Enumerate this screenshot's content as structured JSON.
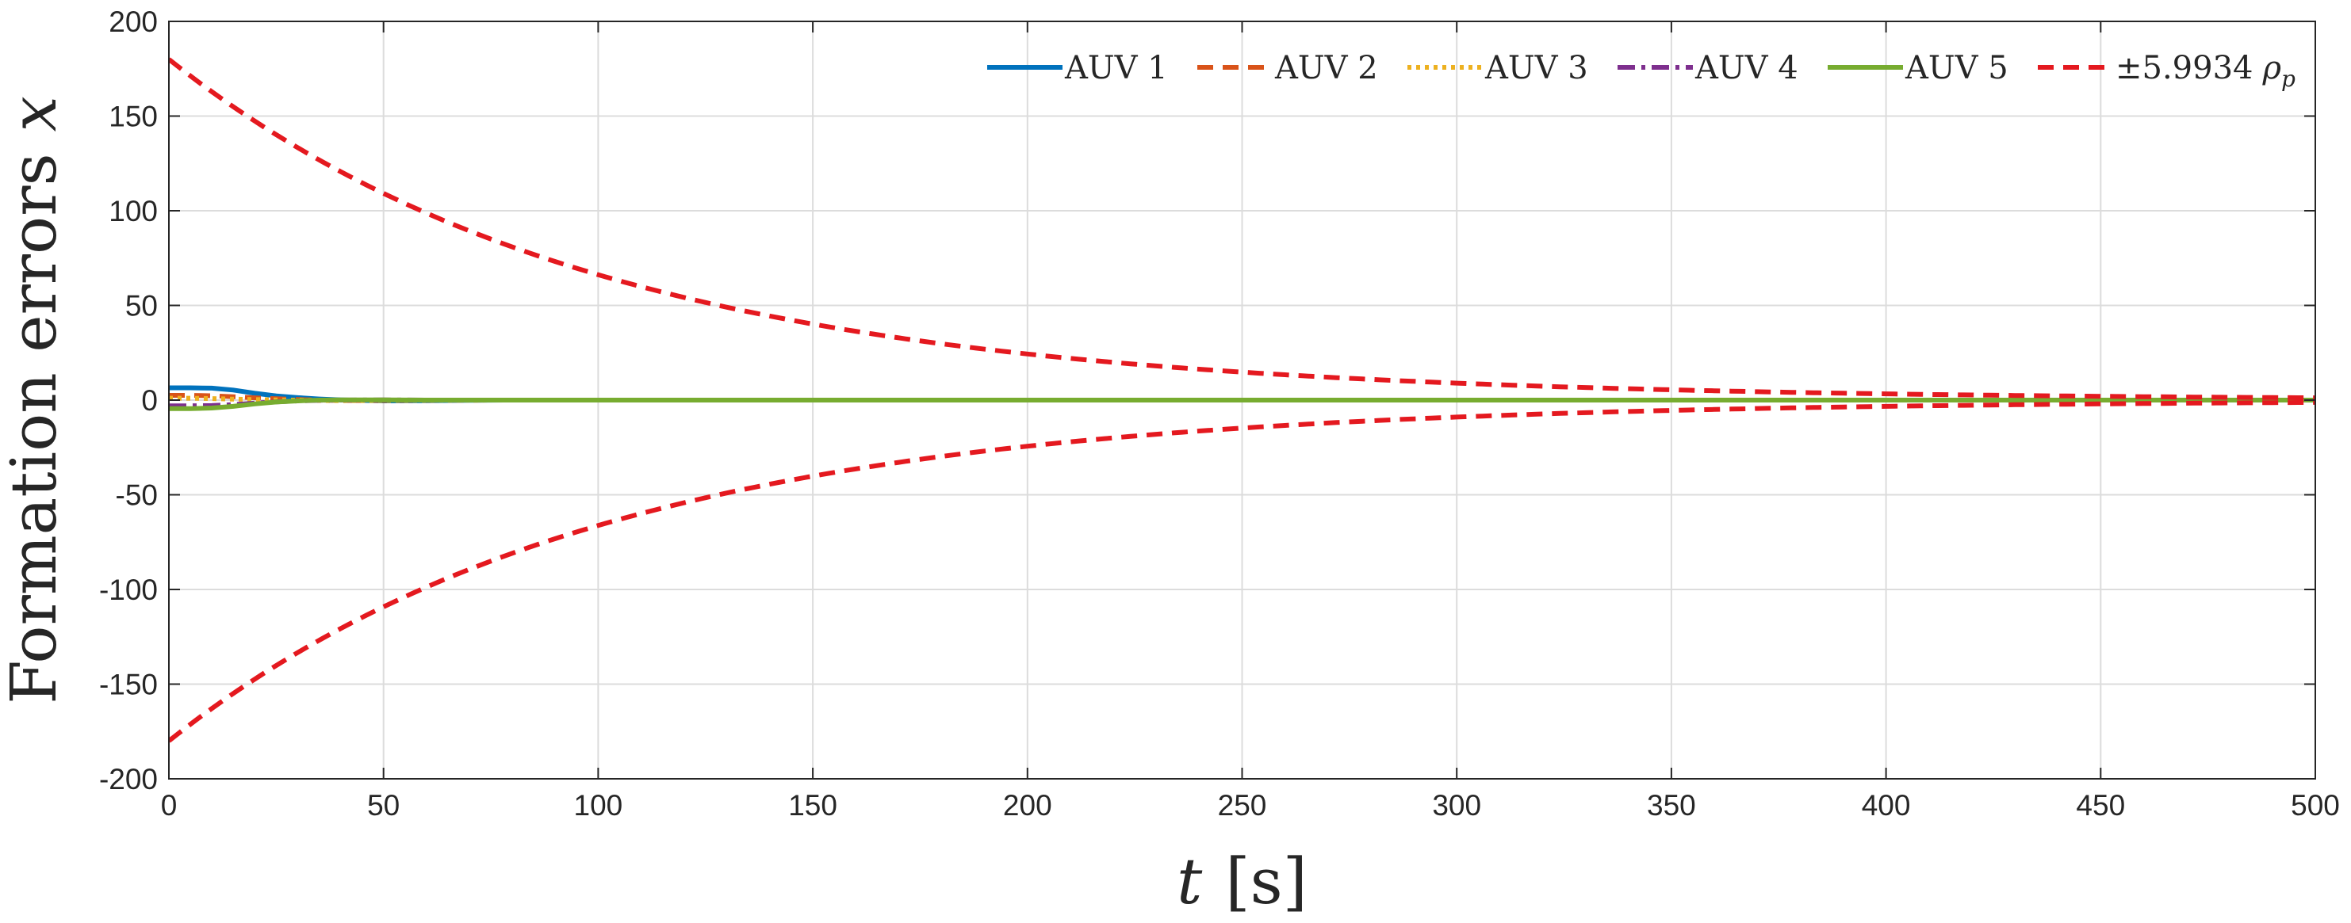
{
  "chart_data": {
    "type": "line",
    "xlabel_var": "t",
    "xlabel_unit": "[s]",
    "ylabel_text": "Formation errors",
    "ylabel_var": "x",
    "xlim": [
      0,
      500
    ],
    "ylim": [
      -200,
      200
    ],
    "xticks": [
      0,
      50,
      100,
      150,
      200,
      250,
      300,
      350,
      400,
      450,
      500
    ],
    "yticks": [
      -200,
      -150,
      -100,
      -50,
      0,
      50,
      100,
      150,
      200
    ],
    "grid": true,
    "legend_position": "top-right",
    "bound": {
      "name": "±5.9934 ρp",
      "legend_main": "±5.9934",
      "legend_rho": "ρ",
      "legend_sub": "p",
      "color": "#e4191f",
      "style": "dashed",
      "initial": 180,
      "decay_rate": 0.01
    },
    "series": [
      {
        "name": "AUV 1",
        "color": "#0072bd",
        "style": "solid",
        "x": [
          0,
          5,
          10,
          15,
          20,
          25,
          30,
          35,
          40,
          50,
          60,
          70,
          80,
          100,
          500
        ],
        "y": [
          6.5,
          6.5,
          6.3,
          5.3,
          3.6,
          2.2,
          1.3,
          0.6,
          0.1,
          -0.4,
          -0.3,
          -0.1,
          0,
          0,
          0
        ]
      },
      {
        "name": "AUV 2",
        "color": "#d95319",
        "style": "dashed",
        "x": [
          0,
          5,
          10,
          15,
          20,
          25,
          30,
          35,
          40,
          50,
          60,
          80,
          500
        ],
        "y": [
          2.5,
          2.5,
          2.3,
          1.8,
          1.2,
          0.7,
          0.3,
          0,
          -0.2,
          -0.2,
          -0.1,
          0,
          0
        ]
      },
      {
        "name": "AUV 3",
        "color": "#edb120",
        "style": "dotted",
        "x": [
          0,
          5,
          10,
          15,
          20,
          25,
          30,
          35,
          40,
          50,
          60,
          80,
          500
        ],
        "y": [
          1.0,
          1.0,
          0.8,
          0.5,
          0.3,
          0.1,
          0,
          -0.2,
          -0.3,
          -0.2,
          -0.1,
          0,
          0
        ]
      },
      {
        "name": "AUV 4",
        "color": "#7e2f8e",
        "style": "dashdot",
        "x": [
          0,
          5,
          10,
          15,
          20,
          25,
          30,
          35,
          40,
          50,
          60,
          80,
          500
        ],
        "y": [
          -3.0,
          -3.0,
          -2.9,
          -2.4,
          -1.6,
          -0.9,
          -0.4,
          -0.1,
          0,
          0.1,
          0,
          0,
          0
        ]
      },
      {
        "name": "AUV 5",
        "color": "#77ac30",
        "style": "solid",
        "x": [
          0,
          5,
          10,
          15,
          20,
          25,
          30,
          35,
          40,
          50,
          60,
          80,
          500
        ],
        "y": [
          -4.5,
          -4.5,
          -4.2,
          -3.3,
          -2.0,
          -1.0,
          -0.4,
          0,
          0.1,
          0.1,
          0,
          0,
          0
        ]
      }
    ]
  }
}
